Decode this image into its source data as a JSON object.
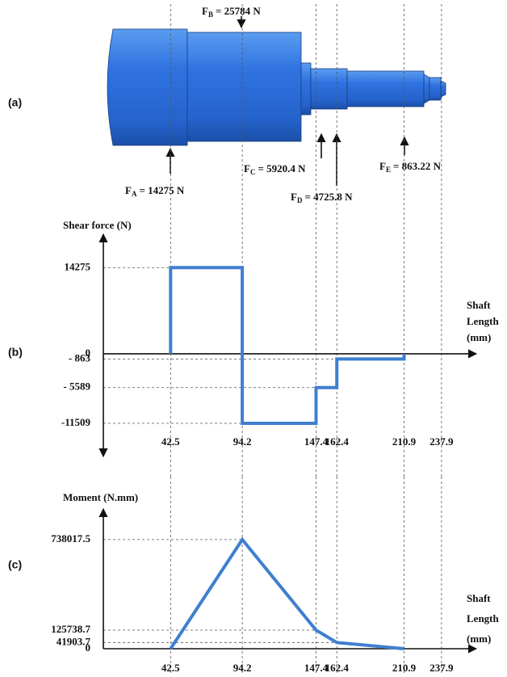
{
  "panel_a": {
    "label": "(a)",
    "forces": [
      {
        "symbol": "F",
        "sub": "A",
        "text": "= 14275 N"
      },
      {
        "symbol": "F",
        "sub": "B",
        "text": "= 25784 N"
      },
      {
        "symbol": "F",
        "sub": "C",
        "text": "= 5920.4 N"
      },
      {
        "symbol": "F",
        "sub": "D",
        "text": "= 4725.8 N"
      },
      {
        "symbol": "F",
        "sub": "E",
        "text": "= 863.22 N"
      }
    ]
  },
  "chart_data": [
    {
      "type": "line",
      "panel": "(b)",
      "ylabel": "Shear force (N)",
      "xlabel": "Shaft Length (mm)",
      "color": "#3f7fd0",
      "grid": true,
      "x": [
        42.5,
        42.5,
        94.2,
        94.2,
        147.4,
        147.4,
        162.4,
        162.4,
        210.9,
        210.9
      ],
      "values": [
        0,
        14275,
        14275,
        -11509,
        -11509,
        -5589,
        -5589,
        -863,
        -863,
        0
      ],
      "xlim": [
        -6,
        263
      ],
      "xticks": [
        42.5,
        94.2,
        147.4,
        162.4,
        210.9,
        237.9
      ],
      "ylim": [
        -17000,
        19800
      ],
      "yticks": [
        14275,
        0,
        {
          "value": -863,
          "label": "- 863"
        },
        {
          "value": -5589,
          "label": "- 5589"
        },
        -11509
      ]
    },
    {
      "type": "line",
      "panel": "(c)",
      "ylabel": "Moment (N.mm)",
      "xlabel": "Shaft Length (mm)",
      "color": "#3f7fd0",
      "grid": true,
      "x": [
        42.5,
        94.2,
        147.4,
        162.4,
        210.9
      ],
      "values": [
        0,
        738017.5,
        125738.7,
        41903.7,
        0
      ],
      "xlim": [
        -6,
        263
      ],
      "xticks": [
        42.5,
        94.2,
        147.4,
        162.4,
        210.9,
        237.9
      ],
      "ylim": [
        0,
        945000
      ],
      "yticks": [
        738017.5,
        125738.7,
        41903.7,
        0
      ]
    }
  ]
}
